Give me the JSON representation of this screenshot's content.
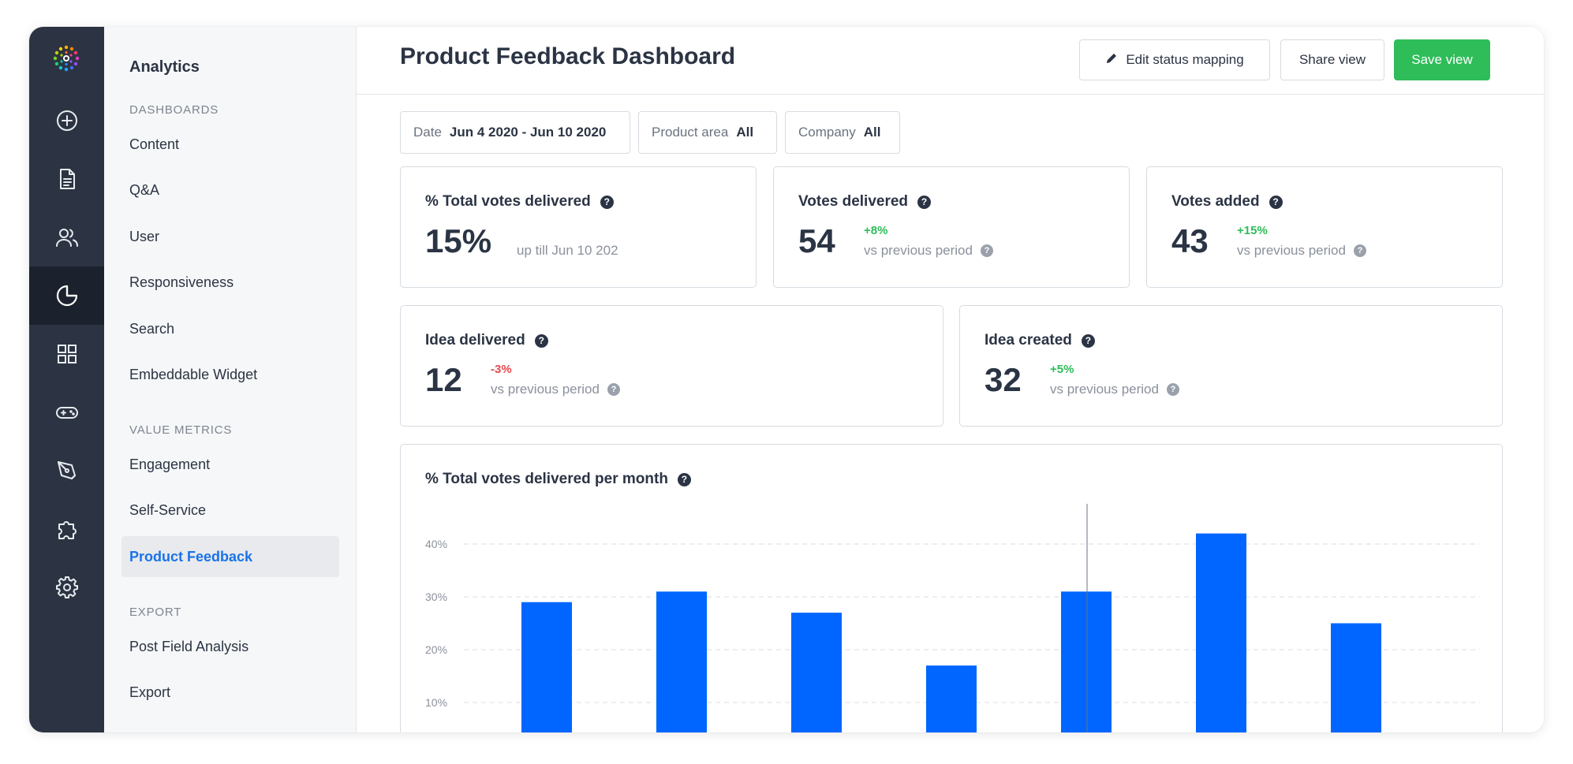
{
  "sidebar": {
    "title": "Analytics",
    "sections": [
      {
        "label": "DASHBOARDS",
        "items": [
          "Content",
          "Q&A",
          "User",
          "Responsiveness",
          "Search",
          "Embeddable Widget"
        ]
      },
      {
        "label": "VALUE METRICS",
        "items": [
          "Engagement",
          "Self-Service",
          "Product Feedback"
        ]
      },
      {
        "label": "EXPORT",
        "items": [
          "Post Field Analysis",
          "Export"
        ]
      }
    ],
    "active_item": "Product Feedback"
  },
  "rail": {
    "icons": [
      "logo-icon",
      "add-circle-icon",
      "document-icon",
      "users-icon",
      "pie-chart-icon",
      "grid-icon",
      "gamepad-icon",
      "pen-tool-icon",
      "puzzle-icon",
      "gear-icon"
    ],
    "active": "pie-chart-icon"
  },
  "header": {
    "title": "Product Feedback Dashboard",
    "edit_label": "Edit status mapping",
    "share_label": "Share view",
    "save_label": "Save view"
  },
  "filters": [
    {
      "label": "Date",
      "value": "Jun 4 2020 - Jun 10 2020"
    },
    {
      "label": "Product area",
      "value": "All"
    },
    {
      "label": "Company",
      "value": "All"
    }
  ],
  "metrics": {
    "total_votes_delivered": {
      "title": "% Total votes delivered",
      "value": "15%",
      "sub": "up till Jun 10 202"
    },
    "votes_delivered": {
      "title": "Votes delivered",
      "value": "54",
      "change": "+8%",
      "sub": "vs previous period"
    },
    "votes_added": {
      "title": "Votes added",
      "value": "43",
      "change": "+15%",
      "sub": "vs previous period"
    },
    "idea_delivered": {
      "title": "Idea delivered",
      "value": "12",
      "change": "-3%",
      "sub": "vs previous period"
    },
    "idea_created": {
      "title": "Idea created",
      "value": "32",
      "change": "+5%",
      "sub": "vs previous period"
    }
  },
  "colors": {
    "accent": "#0066ff",
    "save": "#2ebd59",
    "positive": "#2ebd59",
    "negative": "#e5484d",
    "rail": "#2c3443"
  },
  "chart_data": {
    "type": "bar",
    "title": "% Total votes delivered per month",
    "values": [
      29,
      31,
      27,
      17,
      31,
      42,
      25
    ],
    "yticks": [
      "10%",
      "20%",
      "30%",
      "40%"
    ],
    "ylim": [
      0,
      43
    ],
    "grid": true,
    "color": "#0066ff"
  }
}
